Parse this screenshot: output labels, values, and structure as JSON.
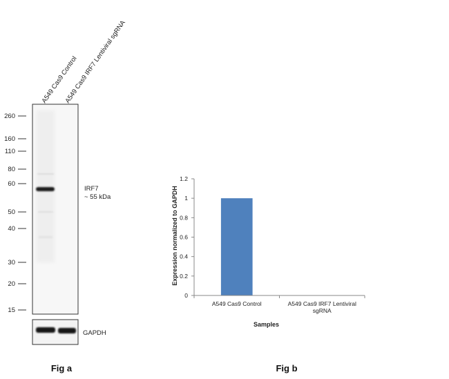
{
  "figure_a": {
    "lane_labels": [
      "A549 Cas9 Control",
      "A549  Cas9  IRF7 Lentiviral sgRNA"
    ],
    "mw_markers": [
      "260",
      "160",
      "110",
      "80",
      "60",
      "50",
      "40",
      "30",
      "20",
      "15"
    ],
    "band_label_line1": "IRF7",
    "band_label_line2": "~ 55 kDa",
    "loading_control_label": "GAPDH",
    "caption": "Fig a"
  },
  "figure_b": {
    "caption": "Fig b"
  },
  "chart_data": {
    "type": "bar",
    "categories": [
      "A549 Cas9 Control",
      "A549 Cas9 IRF7 Lentiviral sgRNA"
    ],
    "category_lines": [
      [
        "A549 Cas9 Control"
      ],
      [
        "A549 Cas9 IRF7 Lentiviral",
        "sgRNA"
      ]
    ],
    "values": [
      1.0,
      0.0
    ],
    "xlabel": "Samples",
    "ylabel": "Expression  normalized to GAPDH",
    "ylim": [
      0,
      1.2
    ],
    "yticks": [
      "0",
      "0.2",
      "0.4",
      "0.6",
      "0.8",
      "1",
      "1.2"
    ],
    "bar_color": "#4f81bd",
    "grid": false
  }
}
